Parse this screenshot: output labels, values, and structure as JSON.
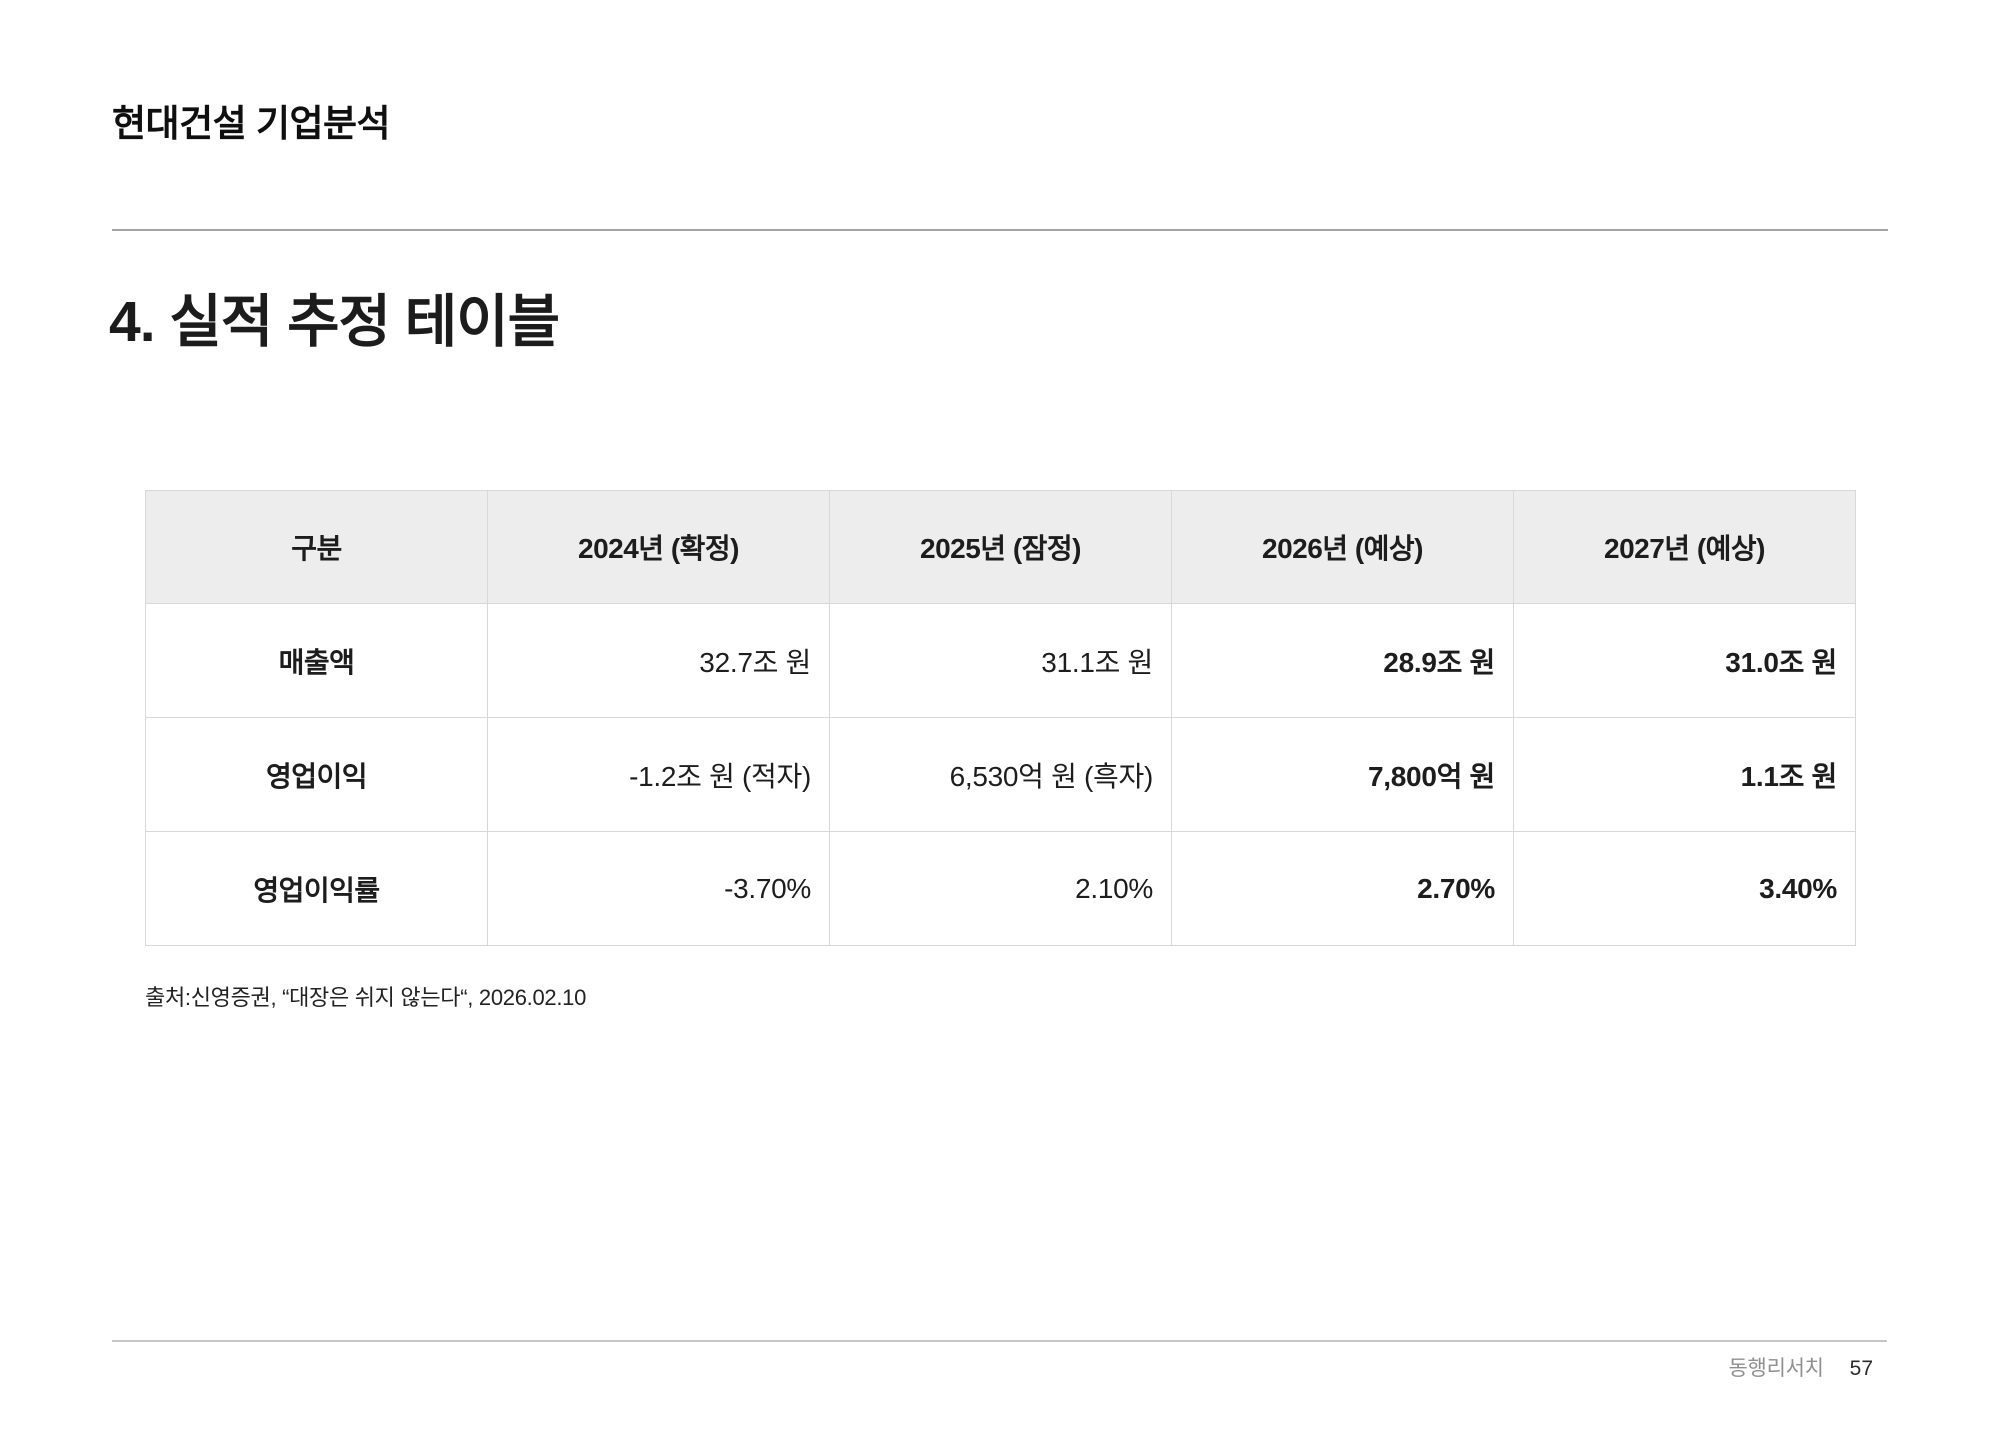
{
  "header": {
    "title": "현대건설 기업분석"
  },
  "section": {
    "title": "4. 실적 추정 테이블"
  },
  "table": {
    "columns": [
      "구분",
      "2024년 (확정)",
      "2025년 (잠정)",
      "2026년 (예상)",
      "2027년 (예상)"
    ],
    "rows": [
      {
        "label": "매출액",
        "values": [
          "32.7조 원",
          "31.1조 원",
          "28.9조 원",
          "31.0조 원"
        ]
      },
      {
        "label": "영업이익",
        "values": [
          "-1.2조 원 (적자)",
          "6,530억 원 (흑자)",
          "7,800억 원",
          "1.1조 원"
        ]
      },
      {
        "label": "영업이익률",
        "values": [
          "-3.70%",
          "2.10%",
          "2.70%",
          "3.40%"
        ]
      }
    ]
  },
  "source_note": "출처:신영증권, “대장은 쉬지 않는다“, 2026.02.10",
  "footer": {
    "brand": "동행리서치",
    "page_number": "57"
  },
  "colors": {
    "table_header_bg": "#ededed",
    "table_border": "#d8d8d8",
    "body_text": "#1d1d1d",
    "footer_brand_text": "#8f8f8f",
    "top_divider": "#a3a3a3",
    "footer_divider": "#c6c6c6"
  }
}
